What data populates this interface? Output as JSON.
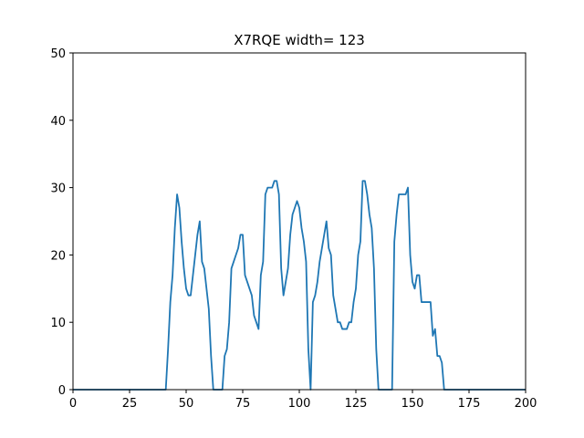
{
  "chart_data": {
    "type": "line",
    "title": "X7RQE width= 123",
    "color": "#1f77b4",
    "x": [
      0,
      41,
      42,
      43,
      44,
      45,
      46,
      47,
      48,
      49,
      50,
      51,
      52,
      53,
      54,
      55,
      56,
      57,
      58,
      59,
      60,
      61,
      62,
      63,
      64,
      65,
      66,
      67,
      68,
      69,
      70,
      71,
      72,
      73,
      74,
      75,
      76,
      77,
      78,
      79,
      80,
      81,
      82,
      83,
      84,
      85,
      86,
      87,
      88,
      89,
      90,
      91,
      92,
      93,
      94,
      95,
      96,
      97,
      98,
      99,
      100,
      101,
      102,
      103,
      104,
      105,
      106,
      107,
      108,
      109,
      110,
      111,
      112,
      113,
      114,
      115,
      116,
      117,
      118,
      119,
      120,
      121,
      122,
      123,
      124,
      125,
      126,
      127,
      128,
      129,
      130,
      131,
      132,
      133,
      134,
      135,
      136,
      137,
      138,
      139,
      140,
      141,
      142,
      143,
      144,
      145,
      146,
      147,
      148,
      149,
      150,
      151,
      152,
      153,
      154,
      155,
      156,
      157,
      158,
      159,
      160,
      161,
      162,
      163,
      164,
      200
    ],
    "values": [
      0,
      0,
      6,
      13,
      17,
      24,
      29,
      27,
      22,
      18,
      15,
      14,
      14,
      17,
      20,
      23,
      25,
      19,
      18,
      15,
      12,
      5,
      0,
      0,
      0,
      0,
      0,
      5,
      6,
      10,
      18,
      19,
      20,
      21,
      23,
      23,
      17,
      16,
      15,
      14,
      11,
      10,
      9,
      17,
      19,
      29,
      30,
      30,
      30,
      31,
      31,
      29,
      18,
      14,
      16,
      18,
      23,
      26,
      27,
      28,
      27,
      24,
      22,
      19,
      6,
      0,
      13,
      14,
      16,
      19,
      21,
      23,
      25,
      21,
      20,
      14,
      12,
      10,
      10,
      9,
      9,
      9,
      10,
      10,
      13,
      15,
      20,
      22,
      31,
      31,
      29,
      26,
      24,
      18,
      6,
      0,
      0,
      0,
      0,
      0,
      0,
      0,
      22,
      26,
      29,
      29,
      29,
      29,
      30,
      20,
      16,
      15,
      17,
      17,
      13,
      13,
      13,
      13,
      13,
      8,
      9,
      5,
      5,
      4,
      0,
      0
    ],
    "xlim": [
      0,
      200
    ],
    "xticks": [
      0,
      25,
      50,
      75,
      100,
      125,
      150,
      175,
      200
    ],
    "ylim": [
      0,
      50
    ],
    "yticks": [
      0,
      10,
      20,
      30,
      40,
      50
    ]
  }
}
